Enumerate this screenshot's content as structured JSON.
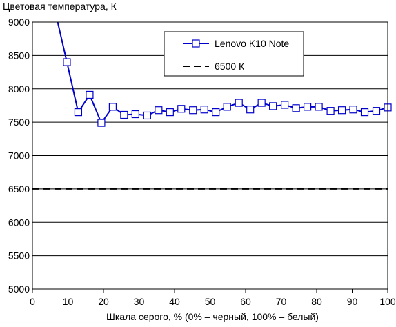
{
  "chart_data": {
    "type": "line",
    "title": "Цветовая температура, К",
    "xlabel": "Шкала серого, % (0% – черный, 100% – белый)",
    "ylabel": "",
    "xlim": [
      0,
      100
    ],
    "ylim": [
      5000,
      9000
    ],
    "xticks": [
      0,
      10,
      20,
      30,
      40,
      50,
      60,
      70,
      80,
      90,
      100
    ],
    "yticks": [
      5000,
      5500,
      6000,
      6500,
      7000,
      7500,
      8000,
      8500,
      9000
    ],
    "grid": "horizontal",
    "legend_position": "top-right",
    "colors": {
      "measured": "#0000cc",
      "reference": "#000000",
      "grid": "#000000"
    },
    "series": [
      {
        "name": "Lenovo K10 Note",
        "style": "line-square-markers",
        "x": [
          3.2,
          9.7,
          12.9,
          16.1,
          19.4,
          22.6,
          25.8,
          29.0,
          32.3,
          35.5,
          38.7,
          41.9,
          45.2,
          48.4,
          51.6,
          54.8,
          58.1,
          61.3,
          64.5,
          67.7,
          71.0,
          74.2,
          77.4,
          80.6,
          83.9,
          87.1,
          90.3,
          93.5,
          96.8,
          100
        ],
        "y": [
          9900,
          8400,
          7650,
          7910,
          7490,
          7730,
          7610,
          7620,
          7600,
          7680,
          7650,
          7700,
          7680,
          7690,
          7650,
          7730,
          7790,
          7690,
          7790,
          7740,
          7760,
          7710,
          7730,
          7730,
          7670,
          7680,
          7690,
          7650,
          7670,
          7720
        ],
        "markers_from_index": 1
      },
      {
        "name": "6500 К",
        "style": "dashed",
        "x": [
          0,
          100
        ],
        "y": [
          6500,
          6500
        ]
      }
    ]
  }
}
